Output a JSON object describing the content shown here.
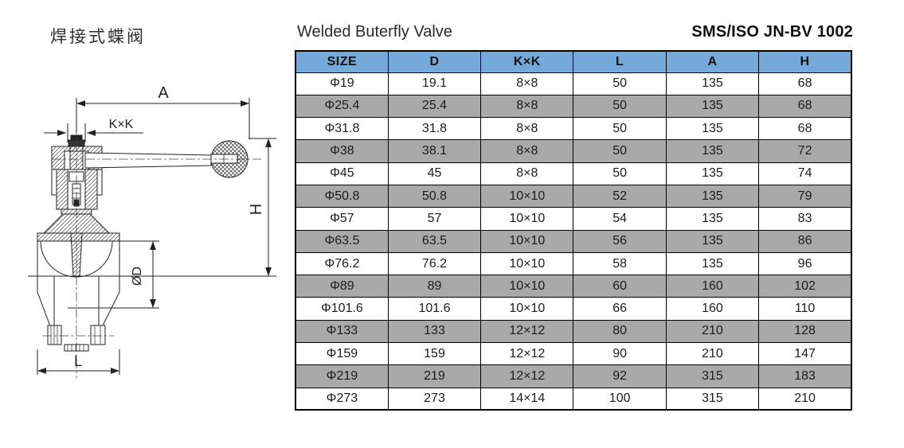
{
  "page": {
    "title_cn": "焊接式蝶阀",
    "title_en": "Welded Buterfly Valve",
    "standard_code": "SMS/ISO JN-BV 1002"
  },
  "drawing": {
    "description": "sectioned butterfly valve with lever handle, dimension callouts",
    "labels": {
      "a": "A",
      "kxk": "K×K",
      "h": "H",
      "od": "ØD",
      "l": "L"
    }
  },
  "table": {
    "headers": [
      "SIZE",
      "D",
      "K×K",
      "L",
      "A",
      "H"
    ],
    "rows": [
      [
        "Φ19",
        "19.1",
        "8×8",
        "50",
        "135",
        "68"
      ],
      [
        "Φ25.4",
        "25.4",
        "8×8",
        "50",
        "135",
        "68"
      ],
      [
        "Φ31.8",
        "31.8",
        "8×8",
        "50",
        "135",
        "68"
      ],
      [
        "Φ38",
        "38.1",
        "8×8",
        "50",
        "135",
        "72"
      ],
      [
        "Φ45",
        "45",
        "8×8",
        "50",
        "135",
        "74"
      ],
      [
        "Φ50.8",
        "50.8",
        "10×10",
        "52",
        "135",
        "79"
      ],
      [
        "Φ57",
        "57",
        "10×10",
        "54",
        "135",
        "83"
      ],
      [
        "Φ63.5",
        "63.5",
        "10×10",
        "56",
        "135",
        "86"
      ],
      [
        "Φ76.2",
        "76.2",
        "10×10",
        "58",
        "135",
        "96"
      ],
      [
        "Φ89",
        "89",
        "10×10",
        "60",
        "160",
        "102"
      ],
      [
        "Φ101.6",
        "101.6",
        "10×10",
        "66",
        "160",
        "110"
      ],
      [
        "Φ133",
        "133",
        "12×12",
        "80",
        "210",
        "128"
      ],
      [
        "Φ159",
        "159",
        "12×12",
        "90",
        "210",
        "147"
      ],
      [
        "Φ219",
        "219",
        "12×12",
        "92",
        "315",
        "183"
      ],
      [
        "Φ273",
        "273",
        "14×14",
        "100",
        "315",
        "210"
      ]
    ]
  },
  "colors": {
    "header_bg": "#74a9d9",
    "row_alt_bg": "#a9a9a9",
    "border_color": "#000000",
    "text_color": "#1f1f1f"
  }
}
